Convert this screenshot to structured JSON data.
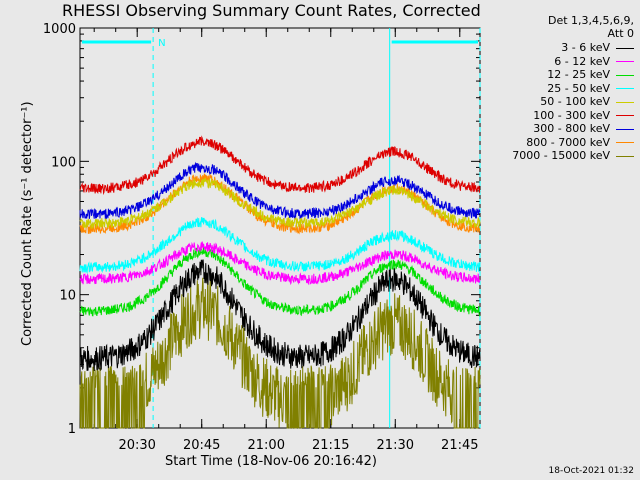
{
  "chart_data": {
    "type": "line",
    "title": "RHESSI Observing Summary Count Rates, Corrected",
    "xlabel": "Start Time (18-Nov-06 20:16:42)",
    "ylabel": "Corrected Count Rate (s⁻¹ detector⁻¹)",
    "yscale": "log",
    "ylim": [
      1,
      1000
    ],
    "xlim_minutes": [
      0,
      93
    ],
    "x_tick_labels": [
      "20:30",
      "20:45",
      "21:00",
      "21:15",
      "21:30",
      "21:45"
    ],
    "y_tick_labels": [
      "1",
      "10",
      "100",
      "1000"
    ],
    "legend_header": [
      "Det 1,3,4,5,6,9,",
      "Att 0"
    ],
    "annotation": "N",
    "series": [
      {
        "name": "3 - 6 keV",
        "color": "#000000",
        "base": 3.3,
        "peak1": 15,
        "peak2": 13
      },
      {
        "name": "6 - 12 keV",
        "color": "#ff00ff",
        "base": 13,
        "peak1": 23,
        "peak2": 20
      },
      {
        "name": "12 - 25 keV",
        "color": "#00dd00",
        "base": 7.5,
        "peak1": 21,
        "peak2": 17
      },
      {
        "name": "25 - 50 keV",
        "color": "#00ffff",
        "base": 16,
        "peak1": 35,
        "peak2": 28
      },
      {
        "name": "50 - 100 keV",
        "color": "#cccc00",
        "base": 34,
        "peak1": 70,
        "peak2": 60
      },
      {
        "name": "100 - 300 keV",
        "color": "#dd0000",
        "base": 62,
        "peak1": 140,
        "peak2": 118
      },
      {
        "name": "300 - 800 keV",
        "color": "#0000dd",
        "base": 40,
        "peak1": 90,
        "peak2": 72
      },
      {
        "name": "800 - 7000 keV",
        "color": "#ff8800",
        "base": 31,
        "peak1": 75,
        "peak2": 63
      },
      {
        "name": "7000 - 15000 keV",
        "color": "#808000",
        "base": 1.5,
        "peak1": 8,
        "peak2": 6
      }
    ],
    "night_intervals_minutes": [
      [
        0,
        17
      ],
      [
        72,
        93
      ]
    ],
    "grid": false
  },
  "footer": {
    "timestamp": "18-Oct-2021 01:32"
  }
}
